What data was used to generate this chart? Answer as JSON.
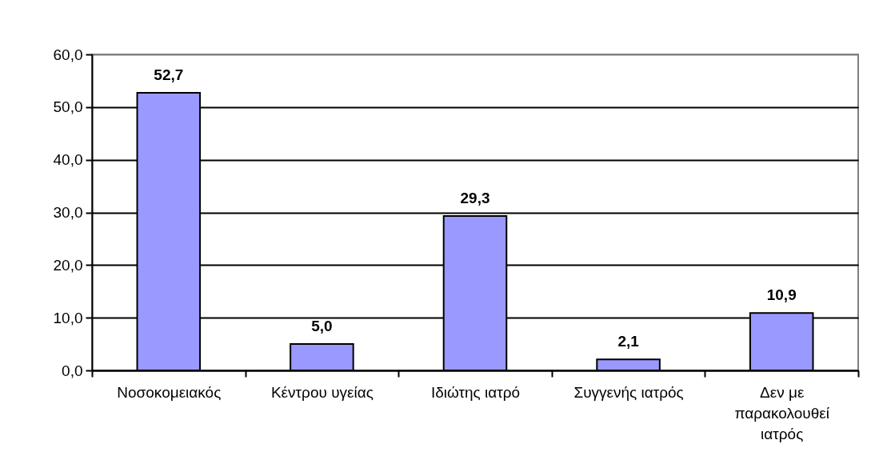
{
  "chart_data": {
    "type": "bar",
    "categories": [
      "Νοσοκομειακός",
      "Κέντρου υγείας",
      "Ιδιώτης ιατρό",
      "Συγγενής ιατρός",
      "Δεν με παρακολουθεί ιατρός"
    ],
    "values": [
      52.7,
      5.0,
      29.3,
      2.1,
      10.9
    ],
    "color": "#9999ff",
    "value_labels": [
      "52,7",
      "5,0",
      "29,3",
      "2,1",
      "10,9"
    ],
    "ylim": [
      0,
      60
    ],
    "yticks": [
      {
        "value": 0,
        "label": "0,0"
      },
      {
        "value": 10,
        "label": "10,0"
      },
      {
        "value": 20,
        "label": "20,0"
      },
      {
        "value": 30,
        "label": "30,0"
      },
      {
        "value": 40,
        "label": "40,0"
      },
      {
        "value": 50,
        "label": "50,0"
      },
      {
        "value": 60,
        "label": "60,0"
      }
    ],
    "grid": "y"
  }
}
